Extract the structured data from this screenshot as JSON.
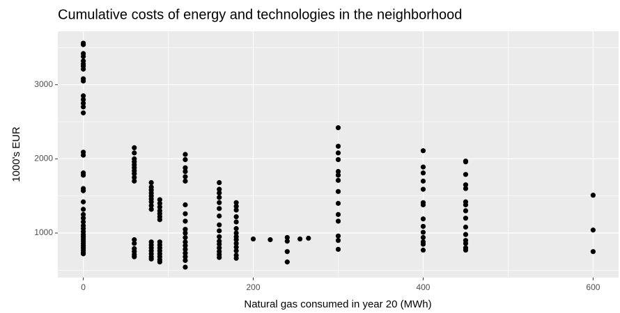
{
  "chart_data": {
    "type": "scatter",
    "title": "Cumulative costs of energy and technologies in the neighborhood",
    "x_label": "Natural gas consumed in year 20 (MWh)",
    "y_label": "1000's EUR",
    "color": "#000000",
    "grid": true,
    "xlim": [
      -30,
      630
    ],
    "xticks": [
      0,
      200,
      400,
      600
    ],
    "ylim": [
      400,
      3720
    ],
    "yticks": [
      1000,
      2000,
      3000
    ],
    "x": [
      0,
      0,
      0,
      0,
      0,
      0,
      0,
      0,
      0,
      0,
      0,
      0,
      0,
      0,
      0,
      0,
      0,
      0,
      0,
      0,
      0,
      0,
      0,
      0,
      0,
      0,
      0,
      0,
      0,
      0,
      0,
      0,
      0,
      0,
      0,
      0,
      0,
      0,
      0,
      60,
      60,
      60,
      60,
      60,
      60,
      60,
      60,
      60,
      60,
      60,
      60,
      60,
      60,
      60,
      60,
      80,
      80,
      80,
      80,
      80,
      80,
      80,
      80,
      80,
      80,
      80,
      80,
      80,
      80,
      80,
      80,
      90,
      90,
      90,
      90,
      90,
      90,
      90,
      90,
      90,
      90,
      90,
      90,
      90,
      90,
      90,
      120,
      120,
      120,
      120,
      120,
      120,
      120,
      120,
      120,
      120,
      120,
      120,
      120,
      120,
      120,
      120,
      120,
      120,
      120,
      160,
      160,
      160,
      160,
      160,
      160,
      160,
      160,
      160,
      160,
      160,
      160,
      160,
      160,
      160,
      160,
      180,
      180,
      180,
      180,
      180,
      180,
      180,
      180,
      180,
      180,
      180,
      180,
      180,
      180,
      200,
      220,
      240,
      240,
      240,
      240,
      255,
      265,
      300,
      300,
      300,
      300,
      300,
      300,
      300,
      300,
      300,
      300,
      300,
      300,
      300,
      300,
      400,
      400,
      400,
      400,
      400,
      400,
      400,
      400,
      400,
      400,
      400,
      400,
      400,
      400,
      450,
      450,
      450,
      450,
      450,
      450,
      450,
      450,
      450,
      450,
      450,
      450,
      450,
      450,
      450,
      600,
      600,
      600
    ],
    "values": [
      3560,
      3540,
      3420,
      3380,
      3320,
      3280,
      3250,
      3210,
      3080,
      3050,
      2850,
      2800,
      2750,
      2700,
      2620,
      2090,
      2050,
      1810,
      1780,
      1600,
      1570,
      1420,
      1320,
      1250,
      1200,
      1150,
      1100,
      1060,
      1020,
      980,
      950,
      920,
      890,
      860,
      830,
      800,
      770,
      740,
      720,
      2150,
      2080,
      2000,
      1960,
      1920,
      1880,
      1840,
      1800,
      1750,
      1700,
      910,
      860,
      790,
      750,
      710,
      680,
      1680,
      1620,
      1580,
      1540,
      1500,
      1460,
      1420,
      1370,
      1320,
      880,
      840,
      800,
      760,
      720,
      680,
      650,
      1450,
      1400,
      1350,
      1300,
      1260,
      1220,
      1180,
      880,
      840,
      800,
      760,
      720,
      680,
      640,
      610,
      2060,
      1990,
      1880,
      1830,
      1760,
      1700,
      1380,
      1260,
      1160,
      1050,
      1000,
      940,
      880,
      830,
      780,
      730,
      680,
      630,
      540,
      1680,
      1590,
      1540,
      1480,
      1410,
      1330,
      1230,
      1110,
      1030,
      950,
      890,
      850,
      800,
      750,
      710,
      670,
      1410,
      1360,
      1310,
      1220,
      1150,
      1060,
      1000,
      950,
      910,
      860,
      810,
      760,
      700,
      660,
      920,
      910,
      940,
      890,
      750,
      610,
      920,
      930,
      2420,
      2170,
      2080,
      1990,
      1830,
      1780,
      1710,
      1560,
      1400,
      1250,
      1160,
      960,
      900,
      780,
      2110,
      1890,
      1810,
      1700,
      1590,
      1410,
      1380,
      1190,
      1090,
      1010,
      940,
      880,
      850,
      770,
      1970,
      1960,
      1790,
      1650,
      1600,
      1420,
      1380,
      1300,
      1200,
      1080,
      980,
      900,
      860,
      800,
      770,
      1510,
      1040,
      750
    ]
  }
}
